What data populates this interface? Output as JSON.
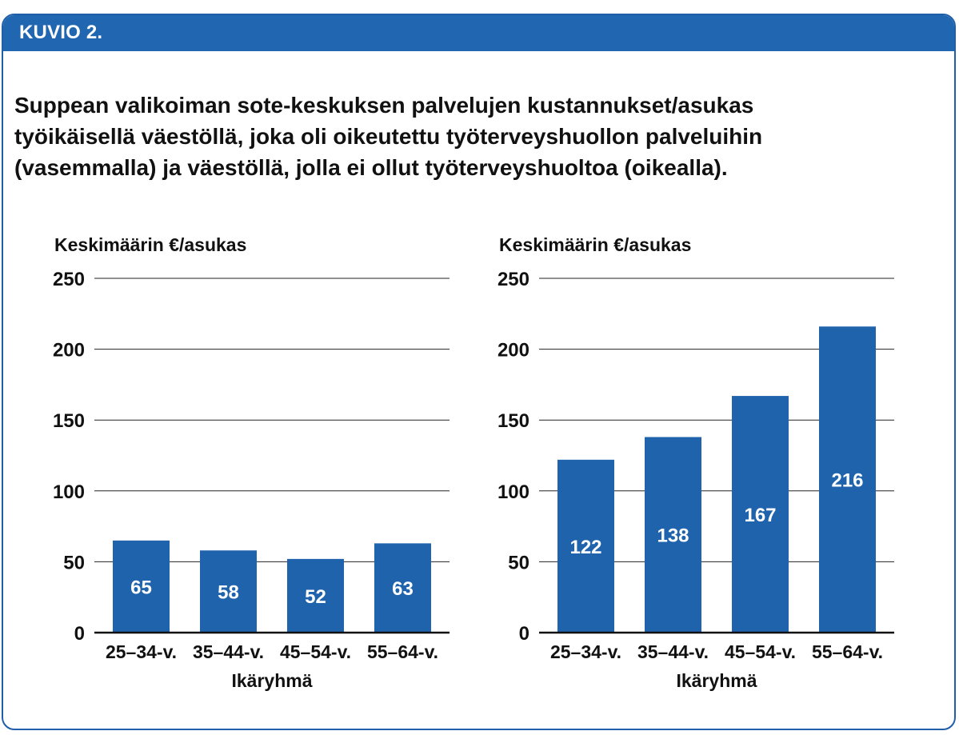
{
  "figure": {
    "label": "KUVIO 2.",
    "title_lines": [
      "Suppean valikoiman sote-keskuksen palvelujen kustannukset/asukas",
      "työikäisellä väestöllä, joka oli oikeutettu työterveyshuollon palveluihin",
      "(vasemmalla) ja väestöllä, jolla ei ollut työterveyshuoltoa (oikealla)."
    ],
    "colors": {
      "accent": "#2166b0",
      "bar": "#1f63ad"
    }
  },
  "chart_data": [
    {
      "type": "bar",
      "categories": [
        "25–34-v.",
        "35–44-v.",
        "45–54-v.",
        "55–64-v."
      ],
      "values": [
        65,
        58,
        52,
        63
      ],
      "data_labels": [
        "65",
        "58",
        "52",
        "63"
      ],
      "ylabel": "Keskimäärin €/asukas",
      "xlabel": "Ikäryhmä",
      "ylim": [
        0,
        250
      ],
      "yticks": [
        0,
        50,
        100,
        150,
        200,
        250
      ],
      "grid": true
    },
    {
      "type": "bar",
      "categories": [
        "25–34-v.",
        "35–44-v.",
        "45–54-v.",
        "55–64-v."
      ],
      "values": [
        122,
        138,
        167,
        216
      ],
      "data_labels": [
        "122",
        "138",
        "167",
        "216"
      ],
      "ylabel": "Keskimäärin €/asukas",
      "xlabel": "Ikäryhmä",
      "ylim": [
        0,
        250
      ],
      "yticks": [
        0,
        50,
        100,
        150,
        200,
        250
      ],
      "grid": true
    }
  ]
}
